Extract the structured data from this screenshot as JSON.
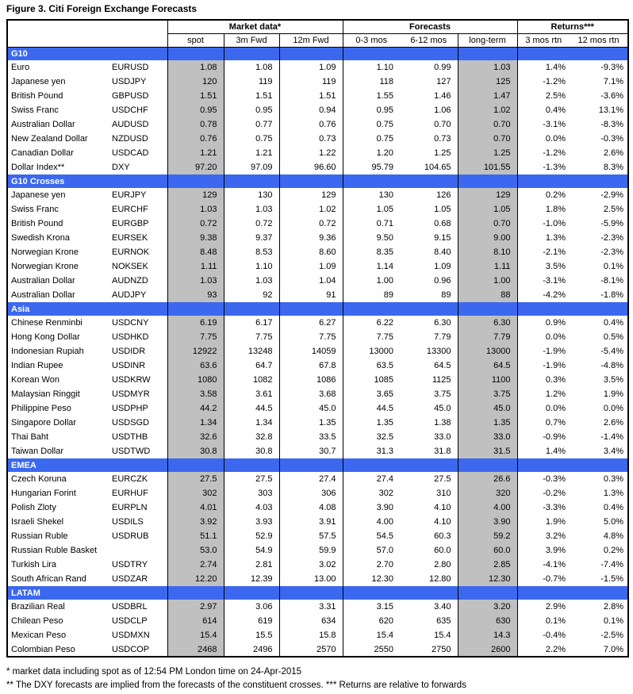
{
  "title": "Figure 3. Citi Foreign Exchange Forecasts",
  "colors": {
    "section_bar": "#3B68EE",
    "shaded_column": "#C0C0C0"
  },
  "table": {
    "group_headers": {
      "market_data": "Market data*",
      "forecasts": "Forecasts",
      "returns": "Returns***"
    },
    "column_headers": {
      "spot": "spot",
      "fwd3m": "3m Fwd",
      "fwd12m": "12m Fwd",
      "mos03": "0-3 mos",
      "mos612": "6-12 mos",
      "long_term": "long-term",
      "rtn3": "3 mos rtn",
      "rtn12": "12 mos rtn"
    },
    "sections": [
      {
        "name": "G10",
        "rows": [
          {
            "currency": "Euro",
            "code": "EURUSD",
            "spot": "1.08",
            "fwd3m": "1.08",
            "fwd12m": "1.09",
            "mos03": "1.10",
            "mos612": "0.99",
            "long_term": "1.03",
            "rtn3": "1.4%",
            "rtn12": "-9.3%"
          },
          {
            "currency": "Japanese yen",
            "code": "USDJPY",
            "spot": "120",
            "fwd3m": "119",
            "fwd12m": "119",
            "mos03": "118",
            "mos612": "127",
            "long_term": "125",
            "rtn3": "-1.2%",
            "rtn12": "7.1%"
          },
          {
            "currency": "British Pound",
            "code": "GBPUSD",
            "spot": "1.51",
            "fwd3m": "1.51",
            "fwd12m": "1.51",
            "mos03": "1.55",
            "mos612": "1.46",
            "long_term": "1.47",
            "rtn3": "2.5%",
            "rtn12": "-3.6%"
          },
          {
            "currency": "Swiss Franc",
            "code": "USDCHF",
            "spot": "0.95",
            "fwd3m": "0.95",
            "fwd12m": "0.94",
            "mos03": "0.95",
            "mos612": "1.06",
            "long_term": "1.02",
            "rtn3": "0.4%",
            "rtn12": "13.1%"
          },
          {
            "currency": "Australian Dollar",
            "code": "AUDUSD",
            "spot": "0.78",
            "fwd3m": "0.77",
            "fwd12m": "0.76",
            "mos03": "0.75",
            "mos612": "0.70",
            "long_term": "0.70",
            "rtn3": "-3.1%",
            "rtn12": "-8.3%"
          },
          {
            "currency": "New Zealand Dollar",
            "code": "NZDUSD",
            "spot": "0.76",
            "fwd3m": "0.75",
            "fwd12m": "0.73",
            "mos03": "0.75",
            "mos612": "0.73",
            "long_term": "0.70",
            "rtn3": "0.0%",
            "rtn12": "-0.3%"
          },
          {
            "currency": "Canadian Dollar",
            "code": "USDCAD",
            "spot": "1.21",
            "fwd3m": "1.21",
            "fwd12m": "1.22",
            "mos03": "1.20",
            "mos612": "1.25",
            "long_term": "1.25",
            "rtn3": "-1.2%",
            "rtn12": "2.6%"
          },
          {
            "currency": "Dollar Index**",
            "code": "DXY",
            "spot": "97.20",
            "fwd3m": "97.09",
            "fwd12m": "96.60",
            "mos03": "95.79",
            "mos612": "104.65",
            "long_term": "101.55",
            "rtn3": "-1.3%",
            "rtn12": "8.3%"
          }
        ]
      },
      {
        "name": "G10 Crosses",
        "rows": [
          {
            "currency": "Japanese yen",
            "code": "EURJPY",
            "spot": "129",
            "fwd3m": "130",
            "fwd12m": "129",
            "mos03": "130",
            "mos612": "126",
            "long_term": "129",
            "rtn3": "0.2%",
            "rtn12": "-2.9%"
          },
          {
            "currency": "Swiss Franc",
            "code": "EURCHF",
            "spot": "1.03",
            "fwd3m": "1.03",
            "fwd12m": "1.02",
            "mos03": "1.05",
            "mos612": "1.05",
            "long_term": "1.05",
            "rtn3": "1.8%",
            "rtn12": "2.5%"
          },
          {
            "currency": "British Pound",
            "code": "EURGBP",
            "spot": "0.72",
            "fwd3m": "0.72",
            "fwd12m": "0.72",
            "mos03": "0.71",
            "mos612": "0.68",
            "long_term": "0.70",
            "rtn3": "-1.0%",
            "rtn12": "-5.9%"
          },
          {
            "currency": "Swedish Krona",
            "code": "EURSEK",
            "spot": "9.38",
            "fwd3m": "9.37",
            "fwd12m": "9.36",
            "mos03": "9.50",
            "mos612": "9.15",
            "long_term": "9.00",
            "rtn3": "1.3%",
            "rtn12": "-2.3%"
          },
          {
            "currency": "Norwegian Krone",
            "code": "EURNOK",
            "spot": "8.48",
            "fwd3m": "8.53",
            "fwd12m": "8.60",
            "mos03": "8.35",
            "mos612": "8.40",
            "long_term": "8.10",
            "rtn3": "-2.1%",
            "rtn12": "-2.3%"
          },
          {
            "currency": "Norwegian Krone",
            "code": "NOKSEK",
            "spot": "1.11",
            "fwd3m": "1.10",
            "fwd12m": "1.09",
            "mos03": "1.14",
            "mos612": "1.09",
            "long_term": "1.11",
            "rtn3": "3.5%",
            "rtn12": "0.1%"
          },
          {
            "currency": "Australian Dollar",
            "code": "AUDNZD",
            "spot": "1.03",
            "fwd3m": "1.03",
            "fwd12m": "1.04",
            "mos03": "1.00",
            "mos612": "0.96",
            "long_term": "1.00",
            "rtn3": "-3.1%",
            "rtn12": "-8.1%"
          },
          {
            "currency": "Australian Dollar",
            "code": "AUDJPY",
            "spot": "93",
            "fwd3m": "92",
            "fwd12m": "91",
            "mos03": "89",
            "mos612": "89",
            "long_term": "88",
            "rtn3": "-4.2%",
            "rtn12": "-1.8%"
          }
        ]
      },
      {
        "name": "Asia",
        "rows": [
          {
            "currency": "Chinese Renminbi",
            "code": "USDCNY",
            "spot": "6.19",
            "fwd3m": "6.17",
            "fwd12m": "6.27",
            "mos03": "6.22",
            "mos612": "6.30",
            "long_term": "6.30",
            "rtn3": "0.9%",
            "rtn12": "0.4%"
          },
          {
            "currency": "Hong Kong Dollar",
            "code": "USDHKD",
            "spot": "7.75",
            "fwd3m": "7.75",
            "fwd12m": "7.75",
            "mos03": "7.75",
            "mos612": "7.79",
            "long_term": "7.79",
            "rtn3": "0.0%",
            "rtn12": "0.5%"
          },
          {
            "currency": "Indonesian Rupiah",
            "code": "USDIDR",
            "spot": "12922",
            "fwd3m": "13248",
            "fwd12m": "14059",
            "mos03": "13000",
            "mos612": "13300",
            "long_term": "13000",
            "rtn3": "-1.9%",
            "rtn12": "-5.4%"
          },
          {
            "currency": "Indian Rupee",
            "code": "USDINR",
            "spot": "63.6",
            "fwd3m": "64.7",
            "fwd12m": "67.8",
            "mos03": "63.5",
            "mos612": "64.5",
            "long_term": "64.5",
            "rtn3": "-1.9%",
            "rtn12": "-4.8%"
          },
          {
            "currency": "Korean Won",
            "code": "USDKRW",
            "spot": "1080",
            "fwd3m": "1082",
            "fwd12m": "1086",
            "mos03": "1085",
            "mos612": "1125",
            "long_term": "1100",
            "rtn3": "0.3%",
            "rtn12": "3.5%"
          },
          {
            "currency": "Malaysian Ringgit",
            "code": "USDMYR",
            "spot": "3.58",
            "fwd3m": "3.61",
            "fwd12m": "3.68",
            "mos03": "3.65",
            "mos612": "3.75",
            "long_term": "3.75",
            "rtn3": "1.2%",
            "rtn12": "1.9%"
          },
          {
            "currency": "Philippine Peso",
            "code": "USDPHP",
            "spot": "44.2",
            "fwd3m": "44.5",
            "fwd12m": "45.0",
            "mos03": "44.5",
            "mos612": "45.0",
            "long_term": "45.0",
            "rtn3": "0.0%",
            "rtn12": "0.0%"
          },
          {
            "currency": "Singapore Dollar",
            "code": "USDSGD",
            "spot": "1.34",
            "fwd3m": "1.34",
            "fwd12m": "1.35",
            "mos03": "1.35",
            "mos612": "1.38",
            "long_term": "1.35",
            "rtn3": "0.7%",
            "rtn12": "2.6%"
          },
          {
            "currency": "Thai Baht",
            "code": "USDTHB",
            "spot": "32.6",
            "fwd3m": "32.8",
            "fwd12m": "33.5",
            "mos03": "32.5",
            "mos612": "33.0",
            "long_term": "33.0",
            "rtn3": "-0.9%",
            "rtn12": "-1.4%"
          },
          {
            "currency": "Taiwan Dollar",
            "code": "USDTWD",
            "spot": "30.8",
            "fwd3m": "30.8",
            "fwd12m": "30.7",
            "mos03": "31.3",
            "mos612": "31.8",
            "long_term": "31.5",
            "rtn3": "1.4%",
            "rtn12": "3.4%"
          }
        ]
      },
      {
        "name": "EMEA",
        "rows": [
          {
            "currency": "Czech Koruna",
            "code": "EURCZK",
            "spot": "27.5",
            "fwd3m": "27.5",
            "fwd12m": "27.4",
            "mos03": "27.4",
            "mos612": "27.5",
            "long_term": "26.6",
            "rtn3": "-0.3%",
            "rtn12": "0.3%"
          },
          {
            "currency": "Hungarian Forint",
            "code": "EURHUF",
            "spot": "302",
            "fwd3m": "303",
            "fwd12m": "306",
            "mos03": "302",
            "mos612": "310",
            "long_term": "320",
            "rtn3": "-0.2%",
            "rtn12": "1.3%"
          },
          {
            "currency": "Polish Zloty",
            "code": "EURPLN",
            "spot": "4.01",
            "fwd3m": "4.03",
            "fwd12m": "4.08",
            "mos03": "3.90",
            "mos612": "4.10",
            "long_term": "4.00",
            "rtn3": "-3.3%",
            "rtn12": "0.4%"
          },
          {
            "currency": "Israeli Shekel",
            "code": "USDILS",
            "spot": "3.92",
            "fwd3m": "3.93",
            "fwd12m": "3.91",
            "mos03": "4.00",
            "mos612": "4.10",
            "long_term": "3.90",
            "rtn3": "1.9%",
            "rtn12": "5.0%"
          },
          {
            "currency": "Russian Ruble",
            "code": "USDRUB",
            "spot": "51.1",
            "fwd3m": "52.9",
            "fwd12m": "57.5",
            "mos03": "54.5",
            "mos612": "60.3",
            "long_term": "59.2",
            "rtn3": "3.2%",
            "rtn12": "4.8%"
          },
          {
            "currency": "Russian Ruble Basket",
            "code": "",
            "spot": "53.0",
            "fwd3m": "54.9",
            "fwd12m": "59.9",
            "mos03": "57.0",
            "mos612": "60.0",
            "long_term": "60.0",
            "rtn3": "3.9%",
            "rtn12": "0.2%"
          },
          {
            "currency": "Turkish Lira",
            "code": "USDTRY",
            "spot": "2.74",
            "fwd3m": "2.81",
            "fwd12m": "3.02",
            "mos03": "2.70",
            "mos612": "2.80",
            "long_term": "2.85",
            "rtn3": "-4.1%",
            "rtn12": "-7.4%"
          },
          {
            "currency": "South African Rand",
            "code": "USDZAR",
            "spot": "12.20",
            "fwd3m": "12.39",
            "fwd12m": "13.00",
            "mos03": "12.30",
            "mos612": "12.80",
            "long_term": "12.30",
            "rtn3": "-0.7%",
            "rtn12": "-1.5%"
          }
        ]
      },
      {
        "name": "LATAM",
        "rows": [
          {
            "currency": "Brazilian Real",
            "code": "USDBRL",
            "spot": "2.97",
            "fwd3m": "3.06",
            "fwd12m": "3.31",
            "mos03": "3.15",
            "mos612": "3.40",
            "long_term": "3.20",
            "rtn3": "2.9%",
            "rtn12": "2.8%"
          },
          {
            "currency": "Chilean Peso",
            "code": "USDCLP",
            "spot": "614",
            "fwd3m": "619",
            "fwd12m": "634",
            "mos03": "620",
            "mos612": "635",
            "long_term": "630",
            "rtn3": "0.1%",
            "rtn12": "0.1%"
          },
          {
            "currency": "Mexican Peso",
            "code": "USDMXN",
            "spot": "15.4",
            "fwd3m": "15.5",
            "fwd12m": "15.8",
            "mos03": "15.4",
            "mos612": "15.4",
            "long_term": "14.3",
            "rtn3": "-0.4%",
            "rtn12": "-2.5%"
          },
          {
            "currency": "Colombian Peso",
            "code": "USDCOP",
            "spot": "2468",
            "fwd3m": "2496",
            "fwd12m": "2570",
            "mos03": "2550",
            "mos612": "2750",
            "long_term": "2600",
            "rtn3": "2.2%",
            "rtn12": "7.0%"
          }
        ]
      }
    ]
  },
  "footnotes": [
    "* market data including spot as of 12:54 PM London time on 24-Apr-2015",
    "** The DXY forecasts are implied from the forecasts of the constituent crosses. *** Returns are relative to forwards"
  ]
}
